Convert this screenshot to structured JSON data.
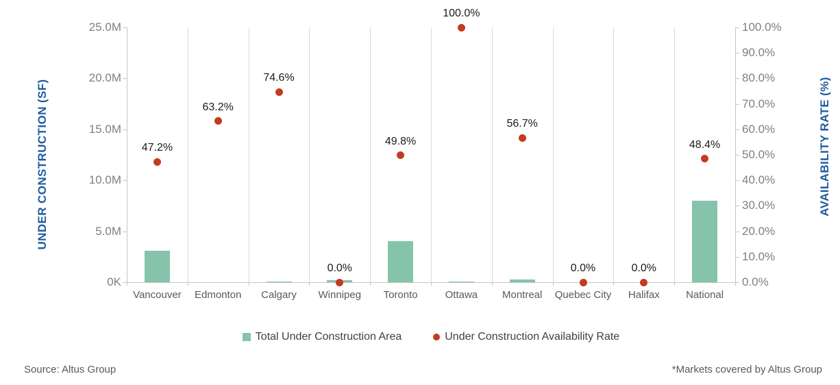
{
  "chart_data": {
    "type": "bar",
    "subtype": "combo-bar-scatter-dual-axis",
    "categories": [
      "Vancouver",
      "Edmonton",
      "Calgary",
      "Winnipeg",
      "Toronto",
      "Ottawa",
      "Montreal",
      "Quebec City",
      "Halifax",
      "National"
    ],
    "series": [
      {
        "name": "Total Under Construction Area",
        "type": "bar",
        "axis": "left",
        "unit": "million SF",
        "values": [
          3.1,
          0.0,
          0.1,
          0.2,
          4.0,
          0.1,
          0.3,
          0.0,
          0.0,
          8.0
        ]
      },
      {
        "name": "Under Construction Availability Rate",
        "type": "scatter",
        "axis": "right",
        "unit": "%",
        "values": [
          47.2,
          63.2,
          74.6,
          0.0,
          49.8,
          100.0,
          56.7,
          0.0,
          0.0,
          48.4
        ],
        "point_labels": [
          "47.2%",
          "63.2%",
          "74.6%",
          "0.0%",
          "49.8%",
          "100.0%",
          "56.7%",
          "0.0%",
          "0.0%",
          "48.4%"
        ]
      }
    ],
    "left_axis": {
      "title": "UNDER CONSTRUCTION (SF)",
      "range": [
        0,
        25000000
      ],
      "tick_labels": [
        "25.0M",
        "20.0M",
        "15.0M",
        "10.0M",
        "5.0M",
        "0K"
      ]
    },
    "right_axis": {
      "title": "AVAILABILITY RATE (%)",
      "range": [
        0,
        100
      ],
      "tick_labels": [
        "100.0%",
        "90.0%",
        "80.0%",
        "70.0%",
        "60.0%",
        "50.0%",
        "40.0%",
        "30.0%",
        "20.0%",
        "10.0%",
        "0.0%"
      ]
    },
    "legend": [
      {
        "shape": "square",
        "label": "Total Under Construction Area"
      },
      {
        "shape": "circle",
        "label": "Under Construction Availability Rate"
      }
    ],
    "grid": "vertical-only",
    "legend_position": "bottom-center"
  },
  "colors": {
    "bar_green": "#85c4ab",
    "dot_red": "#c23b22",
    "axis_title_blue": "#1e5c9e",
    "tick_label_gray": "#7f7f7f",
    "category_label_gray": "#595959",
    "gridline_gray": "#d9d9d9",
    "axisline_gray": "#c6c6c6"
  },
  "footer": {
    "source": "Source: Altus Group",
    "note": "*Markets covered by Altus Group"
  }
}
